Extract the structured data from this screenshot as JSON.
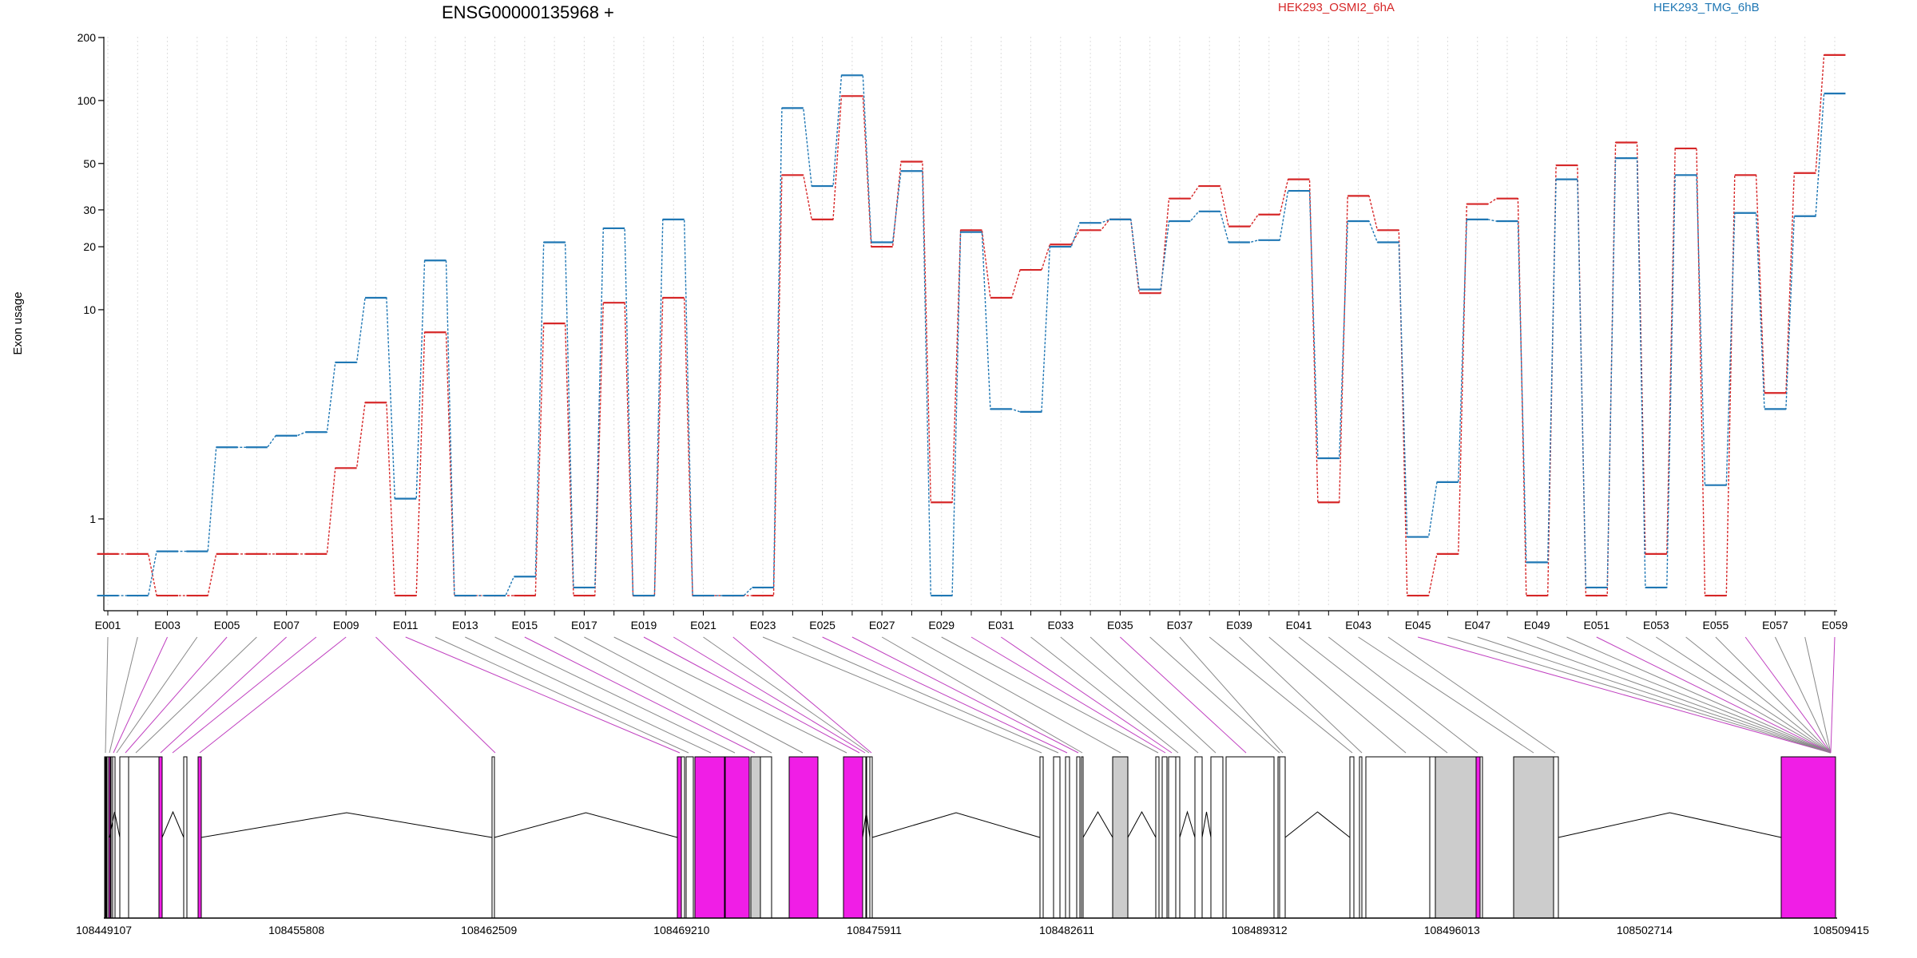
{
  "chart_data": {
    "type": "line",
    "title": "ENSG00000135968 +",
    "ylabel": "Exon usage",
    "yscale": "log",
    "ylim": [
      0.38,
      200
    ],
    "yticks": [
      "200",
      "100",
      "50",
      "30",
      "20",
      "10",
      "1"
    ],
    "grid": "vertical dotted",
    "legend_placement": "top",
    "x": [
      "E001",
      "E002",
      "E003",
      "E004",
      "E005",
      "E006",
      "E007",
      "E008",
      "E009",
      "E010",
      "E011",
      "E012",
      "E013",
      "E014",
      "E015",
      "E016",
      "E017",
      "E018",
      "E019",
      "E020",
      "E021",
      "E022",
      "E023",
      "E024",
      "E025",
      "E026",
      "E027",
      "E028",
      "E029",
      "E030",
      "E031",
      "E032",
      "E033",
      "E034",
      "E035",
      "E036",
      "E037",
      "E038",
      "E039",
      "E040",
      "E041",
      "E042",
      "E043",
      "E044",
      "E045",
      "E046",
      "E047",
      "E048",
      "E049",
      "E050",
      "E051",
      "E052",
      "E053",
      "E054",
      "E055",
      "E056",
      "E057",
      "E058",
      "E059"
    ],
    "xtick_labels": [
      "E001",
      "E003",
      "E005",
      "E007",
      "E009",
      "E011",
      "E013",
      "E015",
      "E017",
      "E019",
      "E021",
      "E023",
      "E025",
      "E027",
      "E029",
      "E031",
      "E033",
      "E035",
      "E037",
      "E039",
      "E041",
      "E043",
      "E045",
      "E047",
      "E049",
      "E051",
      "E053",
      "E055",
      "E057",
      "E059"
    ],
    "series": [
      {
        "name": "HEK293_OSMI2_6hA",
        "color": "#d62728",
        "values": [
          0.68,
          0.68,
          0.43,
          0.43,
          0.68,
          0.68,
          0.68,
          0.68,
          1.75,
          3.6,
          0.43,
          7.8,
          0.43,
          0.43,
          0.43,
          8.6,
          0.43,
          10.8,
          0.43,
          11.4,
          0.43,
          0.43,
          0.43,
          44,
          27,
          105,
          20,
          51,
          1.2,
          24,
          11.4,
          15.5,
          20.5,
          24,
          27,
          12,
          34,
          39,
          25,
          28.5,
          42,
          1.2,
          35,
          24,
          0.43,
          0.68,
          32,
          34,
          0.43,
          49,
          0.43,
          63,
          0.68,
          59,
          0.43,
          44,
          4,
          45,
          165
        ]
      },
      {
        "name": "HEK293_TMG_6hB",
        "color": "#1f77b4",
        "values": [
          0.43,
          0.43,
          0.7,
          0.7,
          2.2,
          2.2,
          2.5,
          2.6,
          5.6,
          11.4,
          1.25,
          17.2,
          0.43,
          0.43,
          0.53,
          21,
          0.47,
          24.5,
          0.43,
          27,
          0.43,
          0.43,
          0.47,
          92,
          39,
          132,
          21,
          46,
          0.43,
          23.5,
          3.35,
          3.25,
          20,
          26,
          27,
          12.5,
          26.5,
          29.5,
          21,
          21.5,
          37,
          1.95,
          26.5,
          21,
          0.82,
          1.5,
          27,
          26.5,
          0.62,
          42,
          0.47,
          53,
          0.47,
          44,
          1.45,
          29,
          3.35,
          28,
          108
        ]
      }
    ],
    "gene_model": {
      "coordinate_labels": [
        "108449107",
        "108455808",
        "108462509",
        "108469210",
        "108475911",
        "108482611",
        "108489312",
        "108496013",
        "108502714",
        "108509415"
      ],
      "coord_start": 108449107,
      "coord_end": 108509415,
      "exon_colors": {
        "default": "#ffffff",
        "gray": "#cccccc",
        "highlight": "#f01ee6"
      }
    }
  }
}
